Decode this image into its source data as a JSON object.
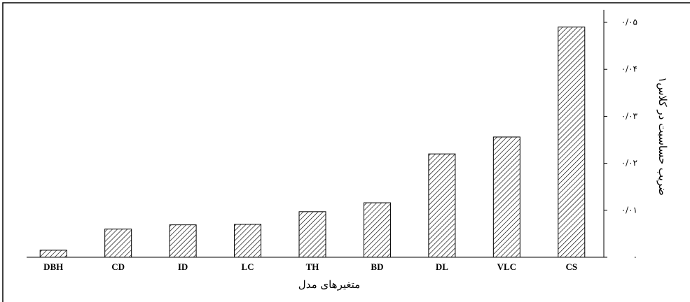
{
  "chart_data": {
    "type": "bar",
    "x_label": "متغیرهای مدل",
    "y_label": "ضریب حساسیت در کلاس۱",
    "categories": [
      "DBH",
      "CD",
      "ID",
      "LC",
      "TH",
      "BD",
      "DL",
      "VLC",
      "CS"
    ],
    "values": [
      0.0015,
      0.006,
      0.0069,
      0.007,
      0.0097,
      0.0116,
      0.022,
      0.0256,
      0.049
    ],
    "color": "#000000",
    "ylim": [
      0,
      0.05
    ],
    "yticks": [
      {
        "value": 0,
        "label": "۰"
      },
      {
        "value": 0.01,
        "label": "۰/۰۱"
      },
      {
        "value": 0.02,
        "label": "۰/۰۲"
      },
      {
        "value": 0.03,
        "label": "۰/۰۳"
      },
      {
        "value": 0.04,
        "label": "۰/۰۴"
      },
      {
        "value": 0.05,
        "label": "۰/۰۵"
      }
    ],
    "y_axis_side": "right"
  }
}
